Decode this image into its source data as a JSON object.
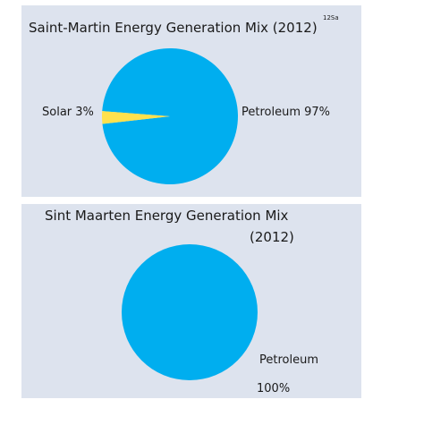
{
  "colors": {
    "petroleum": "#00aeef",
    "solar": "#ffe14d",
    "panel_bg": "#dde3ee"
  },
  "chart_data": [
    {
      "type": "pie",
      "title": "Saint-Martin Energy Generation Mix (2012)",
      "title_note": "12Sa",
      "slices": [
        {
          "label": "Petroleum",
          "value": 97,
          "value_label": "97%",
          "color": "#00aeef"
        },
        {
          "label": "Solar",
          "value": 3,
          "value_label": "3%",
          "color": "#ffe14d"
        }
      ]
    },
    {
      "type": "pie",
      "title_line1": "Sint Maarten Energy Generation Mix",
      "title_line2": "(2012)",
      "slices": [
        {
          "label": "Petroleum",
          "value": 100,
          "value_label": "100%",
          "color": "#00aeef"
        }
      ]
    }
  ]
}
